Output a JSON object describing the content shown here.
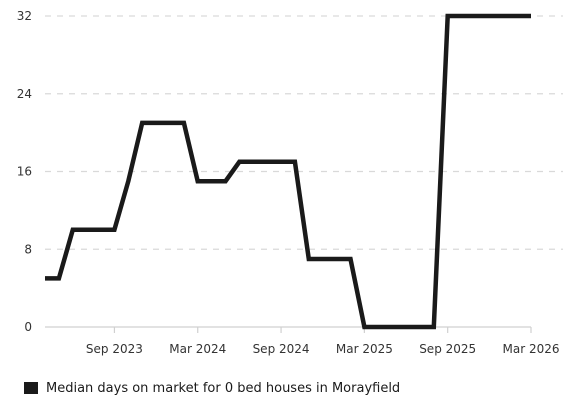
{
  "chart_data": {
    "type": "line",
    "title": "",
    "xlabel": "",
    "ylabel": "",
    "x_tick_labels": [
      "Sep 2023",
      "Mar 2024",
      "Sep 2024",
      "Mar 2025",
      "Sep 2025",
      "Mar 2026"
    ],
    "y_tick_labels": [
      "0",
      "8",
      "16",
      "24",
      "32"
    ],
    "ylim": [
      0,
      32
    ],
    "grid": "horizontal-dashed",
    "legend_position": "bottom-left",
    "series": [
      {
        "name": "Median days on market for 0 bed houses in Morayfield",
        "color": "#1a1a1a",
        "points": [
          {
            "x": "2023-04",
            "y": 5
          },
          {
            "x": "2023-05",
            "y": 5
          },
          {
            "x": "2023-06",
            "y": 10
          },
          {
            "x": "2023-07",
            "y": 10
          },
          {
            "x": "2023-08",
            "y": 10
          },
          {
            "x": "2023-09",
            "y": 10
          },
          {
            "x": "2023-10",
            "y": 15
          },
          {
            "x": "2023-11",
            "y": 21
          },
          {
            "x": "2023-12",
            "y": 21
          },
          {
            "x": "2024-01",
            "y": 21
          },
          {
            "x": "2024-02",
            "y": 21
          },
          {
            "x": "2024-03",
            "y": 15
          },
          {
            "x": "2024-04",
            "y": 15
          },
          {
            "x": "2024-05",
            "y": 15
          },
          {
            "x": "2024-06",
            "y": 17
          },
          {
            "x": "2024-07",
            "y": 17
          },
          {
            "x": "2024-08",
            "y": 17
          },
          {
            "x": "2024-09",
            "y": 17
          },
          {
            "x": "2024-10",
            "y": 17
          },
          {
            "x": "2024-11",
            "y": 7
          },
          {
            "x": "2024-12",
            "y": 7
          },
          {
            "x": "2025-01",
            "y": 7
          },
          {
            "x": "2025-02",
            "y": 7
          },
          {
            "x": "2025-03",
            "y": 0
          },
          {
            "x": "2025-04",
            "y": 0
          },
          {
            "x": "2025-05",
            "y": 0
          },
          {
            "x": "2025-06",
            "y": 0
          },
          {
            "x": "2025-07",
            "y": 0
          },
          {
            "x": "2025-08",
            "y": 0
          },
          {
            "x": "2025-09",
            "y": 32
          },
          {
            "x": "2025-10",
            "y": 32
          },
          {
            "x": "2025-11",
            "y": 32
          },
          {
            "x": "2025-12",
            "y": 32
          },
          {
            "x": "2026-01",
            "y": 32
          },
          {
            "x": "2026-02",
            "y": 32
          },
          {
            "x": "2026-03",
            "y": 32
          }
        ]
      }
    ]
  }
}
